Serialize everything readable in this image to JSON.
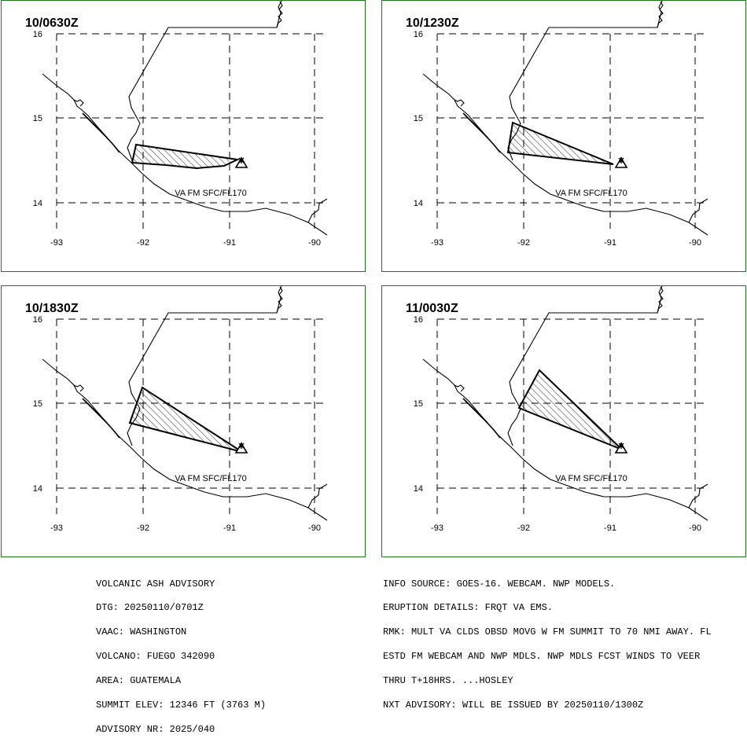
{
  "panels": [
    {
      "time": "10/0630Z",
      "label": "VA FM SFC/FL170"
    },
    {
      "time": "10/1230Z",
      "label": "VA FM SFC/FL170"
    },
    {
      "time": "10/1830Z",
      "label": "VA FM SFC/FL170"
    },
    {
      "time": "11/0030Z",
      "label": "VA FM SFC/FL170"
    }
  ],
  "lat_ticks": [
    "16",
    "15",
    "14"
  ],
  "lon_ticks": [
    "-93",
    "-92",
    "-91",
    "-90"
  ],
  "advisory_left": [
    "VOLCANIC ASH ADVISORY",
    "DTG: 20250110/0701Z",
    "VAAC: WASHINGTON",
    "VOLCANO: FUEGO 342090",
    "AREA: GUATEMALA",
    "SUMMIT ELEV: 12346 FT (3763 M)",
    "ADVISORY NR: 2025/040"
  ],
  "advisory_right": [
    "INFO SOURCE: GOES-16. WEBCAM. NWP MODELS.",
    "ERUPTION DETAILS: FRQT VA EMS.",
    "RMK: MULT VA CLDS OBSD MOVG W FM SUMMIT TO 70 NMI AWAY. FL",
    "ESTD FM WEBCAM AND NWP MDLS. NWP MDLS FCST WINDS TO VEER",
    "THRU T+18HRS. ...HOSLEY",
    "NXT ADVISORY: WILL BE ISSUED BY 20250110/1300Z"
  ],
  "colors": {
    "frame": "#1a7a1a",
    "lines": "#000000"
  },
  "icons": {
    "volcano": "volcano-triangle-icon"
  }
}
